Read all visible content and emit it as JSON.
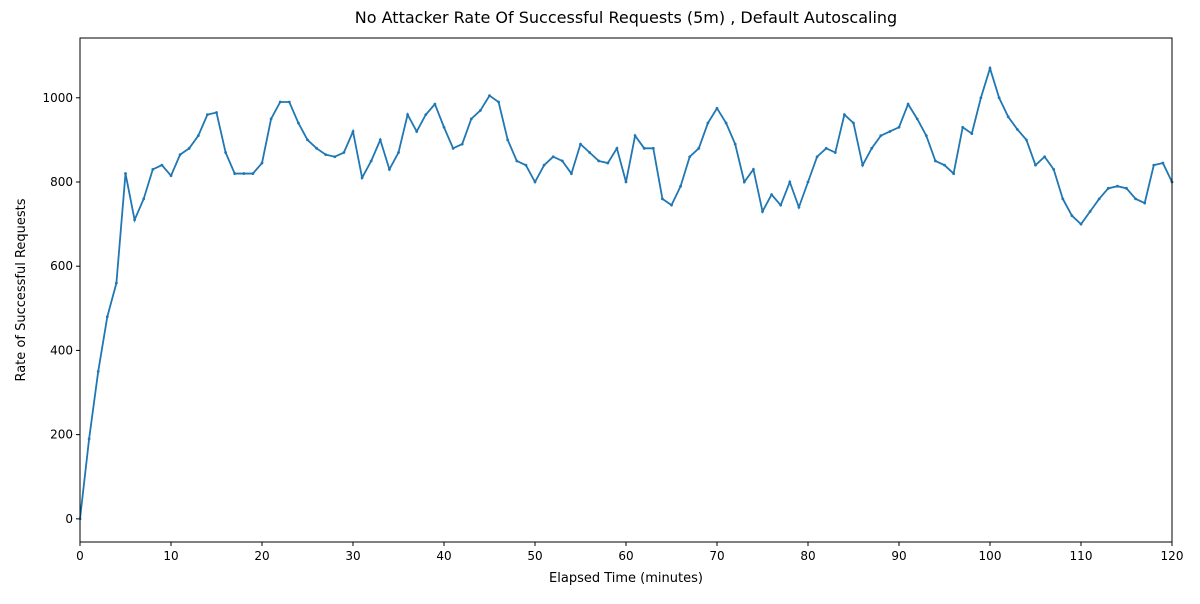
{
  "chart_data": {
    "type": "line",
    "title": "No Attacker Rate Of Successful Requests (5m) , Default Autoscaling",
    "x_label": "Elapsed Time (minutes)",
    "y_label": "Rate of Successful Requests",
    "x": [
      0,
      1,
      2,
      3,
      4,
      5,
      6,
      7,
      8,
      9,
      10,
      11,
      12,
      13,
      14,
      15,
      16,
      17,
      18,
      19,
      20,
      21,
      22,
      23,
      24,
      25,
      26,
      27,
      28,
      29,
      30,
      31,
      32,
      33,
      34,
      35,
      36,
      37,
      38,
      39,
      40,
      41,
      42,
      43,
      44,
      45,
      46,
      47,
      48,
      49,
      50,
      51,
      52,
      53,
      54,
      55,
      56,
      57,
      58,
      59,
      60,
      61,
      62,
      63,
      64,
      65,
      66,
      67,
      68,
      69,
      70,
      71,
      72,
      73,
      74,
      75,
      76,
      77,
      78,
      79,
      80,
      81,
      82,
      83,
      84,
      85,
      86,
      87,
      88,
      89,
      90,
      91,
      92,
      93,
      94,
      95,
      96,
      97,
      98,
      99,
      100,
      101,
      102,
      103,
      104,
      105,
      106,
      107,
      108,
      109,
      110,
      111,
      112,
      113,
      114,
      115,
      116,
      117,
      118,
      119,
      120
    ],
    "series": [
      {
        "name": "Rate of Successful Requests",
        "color": "#1f77b4",
        "values": [
          0,
          190,
          350,
          480,
          560,
          820,
          710,
          760,
          830,
          840,
          815,
          865,
          880,
          910,
          960,
          965,
          870,
          820,
          820,
          820,
          845,
          950,
          990,
          990,
          940,
          900,
          880,
          865,
          860,
          870,
          920,
          810,
          850,
          900,
          830,
          870,
          960,
          920,
          960,
          985,
          930,
          880,
          890,
          950,
          970,
          1005,
          990,
          900,
          850,
          840,
          800,
          840,
          860,
          850,
          820,
          890,
          870,
          850,
          845,
          880,
          800,
          910,
          880,
          880,
          760,
          745,
          790,
          860,
          880,
          940,
          975,
          940,
          890,
          800,
          830,
          730,
          770,
          745,
          800,
          740,
          800,
          860,
          880,
          870,
          960,
          940,
          840,
          880,
          910,
          920,
          930,
          985,
          950,
          910,
          850,
          840,
          820,
          930,
          915,
          1000,
          1070,
          1000,
          955,
          925,
          900,
          840,
          860,
          830,
          760,
          720,
          700,
          730,
          760,
          785,
          790,
          785,
          760,
          750,
          840,
          845,
          800
        ]
      }
    ],
    "xlim": [
      0,
      120
    ],
    "xticks": [
      0,
      10,
      20,
      30,
      40,
      50,
      60,
      70,
      80,
      90,
      100,
      110,
      120
    ],
    "ylim": [
      -55,
      1142
    ],
    "yticks": [
      0,
      200,
      400,
      600,
      800,
      1000
    ],
    "grid": false
  }
}
